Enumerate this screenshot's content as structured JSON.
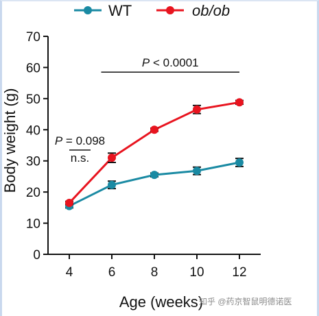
{
  "chart_data": {
    "type": "line",
    "x": [
      4,
      6,
      8,
      10,
      12
    ],
    "xlabel": "Age (weeks)",
    "ylabel": "Body weight (g)",
    "xlim": [
      3,
      13
    ],
    "ylim": [
      0,
      70
    ],
    "xticks": [
      "4",
      "6",
      "8",
      "10",
      "12"
    ],
    "yticks": [
      "0",
      "10",
      "20",
      "30",
      "40",
      "50",
      "60",
      "70"
    ],
    "grid": false,
    "legend_position": "top-center",
    "series": [
      {
        "name": "WT",
        "color": "#1a8aa3",
        "values": [
          15.5,
          22.3,
          25.5,
          26.8,
          29.5
        ],
        "errors": [
          0.6,
          1.2,
          0.6,
          1.2,
          1.3
        ]
      },
      {
        "name": "ob/ob",
        "color": "#e8141f",
        "values": [
          16.5,
          31.0,
          40.0,
          46.5,
          48.8
        ],
        "errors": [
          0.5,
          1.5,
          0.5,
          1.3,
          0.6
        ]
      }
    ],
    "annotations": [
      {
        "p_label": "P",
        "text": " = 0.098",
        "sub": "n.s.",
        "x_range": [
          4,
          5
        ],
        "y": 33.5
      },
      {
        "p_label": "P",
        "text": " < 0.0001",
        "x_range": [
          5.5,
          12
        ],
        "y": 58.5
      }
    ]
  },
  "watermark": "知乎 @药京智鼠明德诺医"
}
